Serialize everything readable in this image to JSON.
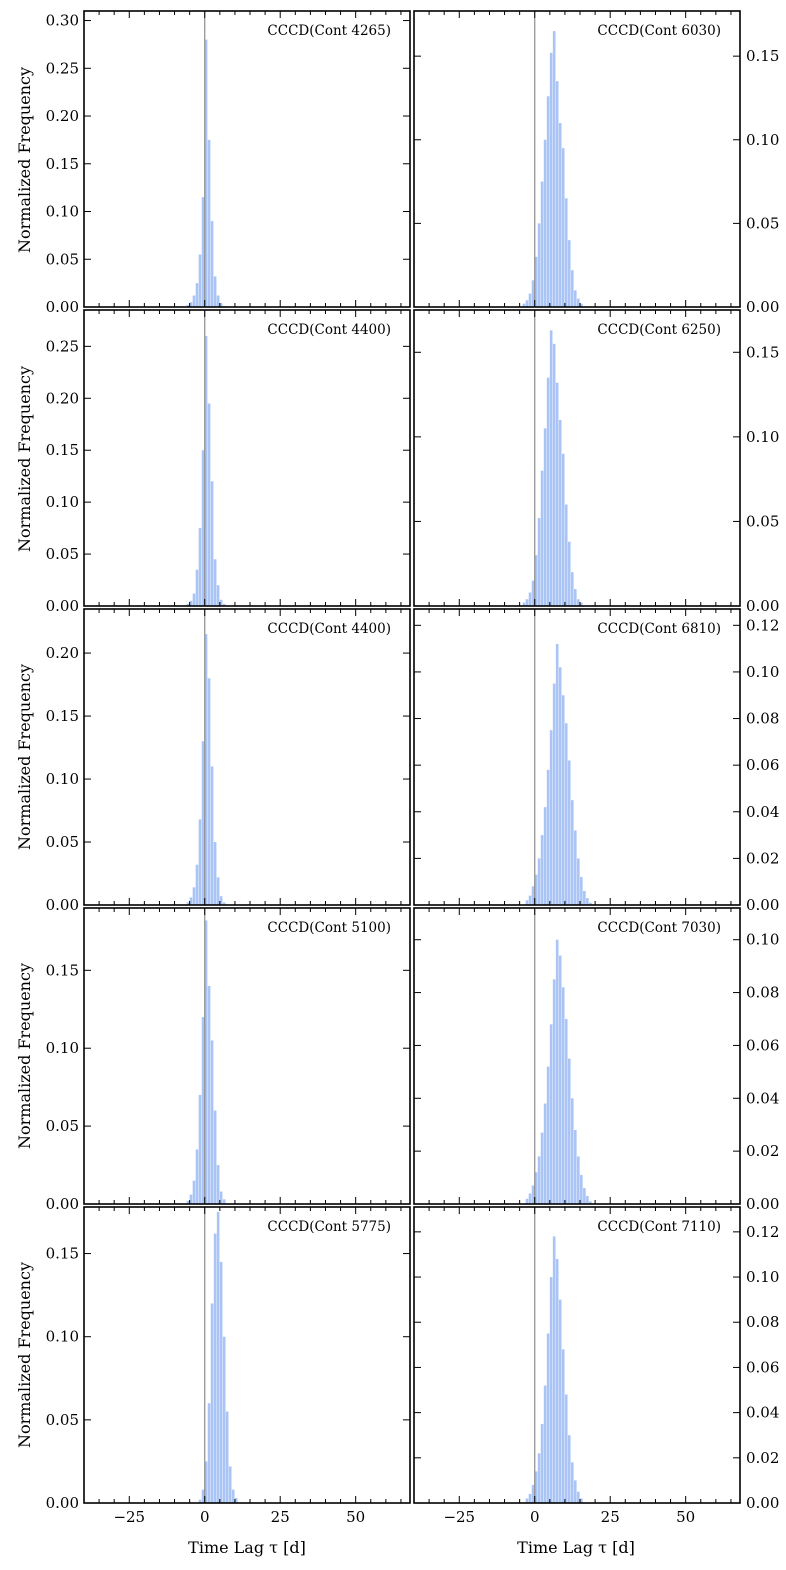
{
  "figure": {
    "ylabel": "Normalized Frequency",
    "xlabel": "Time Lag τ [d]"
  },
  "chart_data": [
    {
      "type": "bar",
      "panel": "left-1",
      "title": "CCCD(Cont 4265)",
      "xlabel": "",
      "ylabel": "Normalized Frequency",
      "xlim": [
        -40,
        68
      ],
      "ylim": [
        0,
        0.31
      ],
      "yticks": [
        0.0,
        0.05,
        0.1,
        0.15,
        0.2,
        0.25,
        0.3
      ],
      "ytick_labels": [
        "0.00",
        "0.05",
        "0.10",
        "0.15",
        "0.20",
        "0.25",
        "0.30"
      ],
      "xticks": [
        -25,
        0,
        25,
        50
      ],
      "xtick_labels": [],
      "reference_line_x": 0,
      "color": "#6495ED",
      "bin_width": 1,
      "bin_start": -6,
      "values": [
        0.002,
        0.005,
        0.012,
        0.025,
        0.055,
        0.115,
        0.28,
        0.175,
        0.09,
        0.032,
        0.012,
        0.004,
        0.001
      ]
    },
    {
      "type": "bar",
      "panel": "right-1",
      "title": "CCCD(Cont 6030)",
      "xlabel": "",
      "ylabel": "",
      "xlim": [
        -40,
        68
      ],
      "ylim": [
        0,
        0.177
      ],
      "yticks": [
        0.0,
        0.05,
        0.1,
        0.15
      ],
      "ytick_labels": [
        "0.00",
        "0.05",
        "0.10",
        "0.15"
      ],
      "xticks": [
        -25,
        0,
        25,
        50
      ],
      "xtick_labels": [],
      "reference_line_x": 0,
      "color": "#6495ED",
      "bin_width": 1,
      "bin_start": -4,
      "values": [
        0.002,
        0.004,
        0.008,
        0.016,
        0.03,
        0.05,
        0.075,
        0.1,
        0.126,
        0.152,
        0.165,
        0.135,
        0.11,
        0.095,
        0.065,
        0.04,
        0.022,
        0.01,
        0.005,
        0.002
      ]
    },
    {
      "type": "bar",
      "panel": "left-2",
      "title": "CCCD(Cont 4400)",
      "xlabel": "",
      "ylabel": "Normalized Frequency",
      "xlim": [
        -40,
        68
      ],
      "ylim": [
        0,
        0.285
      ],
      "yticks": [
        0.0,
        0.05,
        0.1,
        0.15,
        0.2,
        0.25
      ],
      "ytick_labels": [
        "0.00",
        "0.05",
        "0.10",
        "0.15",
        "0.20",
        "0.25"
      ],
      "xticks": [
        -25,
        0,
        25,
        50
      ],
      "xtick_labels": [],
      "reference_line_x": 0,
      "color": "#6495ED",
      "bin_width": 1,
      "bin_start": -6,
      "values": [
        0.002,
        0.005,
        0.012,
        0.035,
        0.075,
        0.15,
        0.26,
        0.195,
        0.12,
        0.045,
        0.02,
        0.006,
        0.002
      ]
    },
    {
      "type": "bar",
      "panel": "right-2",
      "title": "CCCD(Cont 6250)",
      "xlabel": "",
      "ylabel": "",
      "xlim": [
        -40,
        68
      ],
      "ylim": [
        0,
        0.175
      ],
      "yticks": [
        0.0,
        0.05,
        0.1,
        0.15
      ],
      "ytick_labels": [
        "0.00",
        "0.05",
        "0.10",
        "0.15"
      ],
      "xticks": [
        -25,
        0,
        25,
        50
      ],
      "xtick_labels": [],
      "reference_line_x": 0,
      "color": "#6495ED",
      "bin_width": 1,
      "bin_start": -4,
      "values": [
        0.002,
        0.004,
        0.008,
        0.015,
        0.03,
        0.052,
        0.08,
        0.105,
        0.135,
        0.163,
        0.155,
        0.132,
        0.11,
        0.09,
        0.06,
        0.038,
        0.02,
        0.01,
        0.004,
        0.002
      ]
    },
    {
      "type": "bar",
      "panel": "left-3",
      "title": "CCCD(Cont 4400)",
      "xlabel": "",
      "ylabel": "Normalized Frequency",
      "xlim": [
        -40,
        68
      ],
      "ylim": [
        0,
        0.235
      ],
      "yticks": [
        0.0,
        0.05,
        0.1,
        0.15,
        0.2
      ],
      "ytick_labels": [
        "0.00",
        "0.05",
        "0.10",
        "0.15",
        "0.20"
      ],
      "xticks": [
        -25,
        0,
        25,
        50
      ],
      "xtick_labels": [],
      "reference_line_x": 0,
      "color": "#6495ED",
      "bin_width": 1,
      "bin_start": -6,
      "values": [
        0.002,
        0.006,
        0.014,
        0.032,
        0.068,
        0.13,
        0.215,
        0.18,
        0.11,
        0.05,
        0.022,
        0.007,
        0.002
      ]
    },
    {
      "type": "bar",
      "panel": "right-3",
      "title": "CCCD(Cont 6810)",
      "xlabel": "",
      "ylabel": "",
      "xlim": [
        -40,
        68
      ],
      "ylim": [
        0,
        0.127
      ],
      "yticks": [
        0.0,
        0.02,
        0.04,
        0.06,
        0.08,
        0.1,
        0.12
      ],
      "ytick_labels": [
        "0.00",
        "0.02",
        "0.04",
        "0.06",
        "0.08",
        "0.10",
        "0.12"
      ],
      "xticks": [
        -25,
        0,
        25,
        50
      ],
      "xtick_labels": [],
      "reference_line_x": 0,
      "color": "#6495ED",
      "bin_width": 1,
      "bin_start": -3,
      "values": [
        0.002,
        0.004,
        0.008,
        0.013,
        0.02,
        0.03,
        0.042,
        0.058,
        0.075,
        0.095,
        0.112,
        0.102,
        0.09,
        0.078,
        0.062,
        0.045,
        0.032,
        0.02,
        0.012,
        0.006,
        0.003,
        0.001
      ]
    },
    {
      "type": "bar",
      "panel": "left-4",
      "title": "CCCD(Cont 5100)",
      "xlabel": "",
      "ylabel": "Normalized Frequency",
      "xlim": [
        -40,
        68
      ],
      "ylim": [
        0,
        0.19
      ],
      "yticks": [
        0.0,
        0.05,
        0.1,
        0.15
      ],
      "ytick_labels": [
        "0.00",
        "0.05",
        "0.10",
        "0.15"
      ],
      "xticks": [
        -25,
        0,
        25,
        50
      ],
      "xtick_labels": [],
      "reference_line_x": 0,
      "color": "#6495ED",
      "bin_width": 1,
      "bin_start": -6,
      "values": [
        0.002,
        0.006,
        0.015,
        0.035,
        0.07,
        0.12,
        0.182,
        0.14,
        0.105,
        0.06,
        0.025,
        0.008,
        0.003
      ]
    },
    {
      "type": "bar",
      "panel": "right-4",
      "title": "CCCD(Cont 7030)",
      "xlabel": "",
      "ylabel": "",
      "xlim": [
        -40,
        68
      ],
      "ylim": [
        0,
        0.112
      ],
      "yticks": [
        0.0,
        0.02,
        0.04,
        0.06,
        0.08,
        0.1
      ],
      "ytick_labels": [
        "0.00",
        "0.02",
        "0.04",
        "0.06",
        "0.08",
        "0.10"
      ],
      "xticks": [
        -25,
        0,
        25,
        50
      ],
      "xtick_labels": [],
      "reference_line_x": 0,
      "color": "#6495ED",
      "bin_width": 1,
      "bin_start": -3,
      "values": [
        0.002,
        0.004,
        0.007,
        0.012,
        0.018,
        0.027,
        0.038,
        0.052,
        0.068,
        0.085,
        0.1,
        0.094,
        0.082,
        0.07,
        0.055,
        0.04,
        0.028,
        0.018,
        0.011,
        0.006,
        0.003,
        0.001
      ]
    },
    {
      "type": "bar",
      "panel": "left-5",
      "title": "CCCD(Cont 5775)",
      "xlabel": "Time Lag τ [d]",
      "ylabel": "Normalized Frequency",
      "xlim": [
        -40,
        68
      ],
      "ylim": [
        0,
        0.178
      ],
      "yticks": [
        0.0,
        0.05,
        0.1,
        0.15
      ],
      "ytick_labels": [
        "0.00",
        "0.05",
        "0.10",
        "0.15"
      ],
      "xticks": [
        -25,
        0,
        25,
        50
      ],
      "xtick_labels": [
        "−25",
        "0",
        "25",
        "50"
      ],
      "reference_line_x": 0,
      "color": "#6495ED",
      "bin_width": 1,
      "bin_start": -2,
      "values": [
        0.002,
        0.008,
        0.025,
        0.06,
        0.12,
        0.162,
        0.175,
        0.145,
        0.1,
        0.055,
        0.022,
        0.008,
        0.003
      ]
    },
    {
      "type": "bar",
      "panel": "right-5",
      "title": "CCCD(Cont 7110)",
      "xlabel": "Time Lag τ [d]",
      "ylabel": "",
      "xlim": [
        -40,
        68
      ],
      "ylim": [
        0,
        0.131
      ],
      "yticks": [
        0.0,
        0.02,
        0.04,
        0.06,
        0.08,
        0.1,
        0.12
      ],
      "ytick_labels": [
        "0.00",
        "0.02",
        "0.04",
        "0.06",
        "0.08",
        "0.10",
        "0.12"
      ],
      "xticks": [
        -25,
        0,
        25,
        50
      ],
      "xtick_labels": [
        "−25",
        "0",
        "25",
        "50"
      ],
      "reference_line_x": 0,
      "color": "#6495ED",
      "bin_width": 1,
      "bin_start": -3,
      "values": [
        0.002,
        0.004,
        0.008,
        0.014,
        0.022,
        0.035,
        0.052,
        0.075,
        0.1,
        0.118,
        0.108,
        0.09,
        0.068,
        0.048,
        0.03,
        0.018,
        0.01,
        0.005,
        0.002
      ]
    }
  ]
}
